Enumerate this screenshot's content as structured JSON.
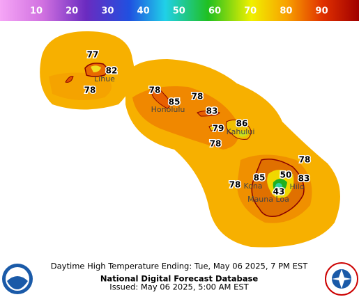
{
  "legend": {
    "ticks": [
      10,
      20,
      30,
      40,
      50,
      60,
      70,
      80,
      90
    ]
  },
  "temperatures": [
    77,
    82,
    78,
    78,
    85,
    78,
    83,
    86,
    79,
    78,
    78,
    85,
    50,
    83,
    78,
    43
  ],
  "places": [
    "Lihue",
    "Honolulu",
    "Kahului",
    "Kona",
    "Hilo",
    "Mauna Loa"
  ],
  "footer": {
    "line1": "Daytime High Temperature Ending: Tue, May 06 2025, 7 PM EST",
    "line2": "National Digital Forecast Database",
    "line3": "Issued: May 06 2025, 5:00 AM EST"
  }
}
